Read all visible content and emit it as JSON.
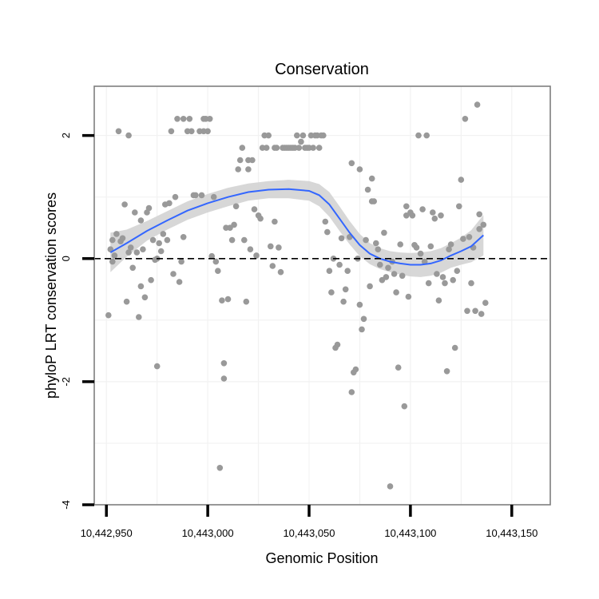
{
  "chart_data": {
    "type": "scatter",
    "title": "Conservation",
    "xlabel": "Genomic Position",
    "ylabel": "phyloP LRT conservation scores",
    "xlim": [
      10442944,
      10443169
    ],
    "ylim": [
      -4,
      2.8
    ],
    "x_ticks": [
      10442950,
      10443000,
      10443050,
      10443100,
      10443150
    ],
    "x_tick_labels": [
      "10,442,950",
      "10,443,000",
      "10,443,050",
      "10,443,100",
      "10,443,150"
    ],
    "y_ticks": [
      -4,
      -2,
      0,
      2
    ],
    "y_tick_labels": [
      "-4",
      "-2",
      "0",
      "2"
    ],
    "reference_line": 0,
    "grid": true,
    "colors": {
      "points": "#999999",
      "smooth": "#3366ff",
      "band": "#d3d3d3",
      "frame": "#7f7f7f"
    },
    "points": [
      [
        10442951,
        -0.92
      ],
      [
        10442952,
        0.15
      ],
      [
        10442953,
        0.3
      ],
      [
        10442953,
        -0.05
      ],
      [
        10442954,
        0.05
      ],
      [
        10442955,
        0.4
      ],
      [
        10442956,
        2.07
      ],
      [
        10442957,
        0.28
      ],
      [
        10442958,
        0.33
      ],
      [
        10442959,
        0.88
      ],
      [
        10442960,
        -0.7
      ],
      [
        10442961,
        0.1
      ],
      [
        10442961,
        2.0
      ],
      [
        10442962,
        0.18
      ],
      [
        10442963,
        -0.15
      ],
      [
        10442964,
        0.75
      ],
      [
        10442965,
        0.1
      ],
      [
        10442966,
        -0.95
      ],
      [
        10442967,
        -0.45
      ],
      [
        10442967,
        0.62
      ],
      [
        10442968,
        0.15
      ],
      [
        10442969,
        -0.63
      ],
      [
        10442970,
        0.75
      ],
      [
        10442971,
        0.82
      ],
      [
        10442972,
        -0.35
      ],
      [
        10442973,
        0.3
      ],
      [
        10442974,
        -0.02
      ],
      [
        10442975,
        -1.75
      ],
      [
        10442975,
        0.0
      ],
      [
        10442976,
        0.25
      ],
      [
        10442977,
        0.12
      ],
      [
        10442978,
        0.4
      ],
      [
        10442979,
        0.88
      ],
      [
        10442980,
        0.3
      ],
      [
        10442981,
        0.9
      ],
      [
        10442982,
        2.07
      ],
      [
        10442983,
        -0.25
      ],
      [
        10442984,
        1.0
      ],
      [
        10442985,
        2.27
      ],
      [
        10442986,
        -0.38
      ],
      [
        10442987,
        -0.05
      ],
      [
        10442988,
        2.27
      ],
      [
        10442988,
        0.35
      ],
      [
        10442990,
        2.07
      ],
      [
        10442991,
        2.27
      ],
      [
        10442992,
        2.07
      ],
      [
        10442993,
        1.03
      ],
      [
        10442994,
        1.03
      ],
      [
        10442996,
        2.07
      ],
      [
        10442997,
        1.03
      ],
      [
        10442998,
        2.27
      ],
      [
        10442998,
        2.07
      ],
      [
        10442999,
        2.27
      ],
      [
        10443000,
        2.07
      ],
      [
        10443001,
        2.27
      ],
      [
        10443002,
        0.04
      ],
      [
        10443003,
        1.0
      ],
      [
        10443004,
        -0.05
      ],
      [
        10443005,
        -0.2
      ],
      [
        10443006,
        -3.4
      ],
      [
        10443007,
        -0.68
      ],
      [
        10443008,
        -1.95
      ],
      [
        10443008,
        -1.7
      ],
      [
        10443009,
        0.5
      ],
      [
        10443010,
        -0.66
      ],
      [
        10443011,
        0.5
      ],
      [
        10443012,
        0.3
      ],
      [
        10443013,
        0.55
      ],
      [
        10443014,
        0.85
      ],
      [
        10443015,
        1.45
      ],
      [
        10443016,
        1.6
      ],
      [
        10443017,
        1.8
      ],
      [
        10443018,
        0.3
      ],
      [
        10443019,
        -0.7
      ],
      [
        10443020,
        1.45
      ],
      [
        10443020,
        1.6
      ],
      [
        10443021,
        0.15
      ],
      [
        10443022,
        1.6
      ],
      [
        10443023,
        0.8
      ],
      [
        10443024,
        0.05
      ],
      [
        10443025,
        0.7
      ],
      [
        10443026,
        0.65
      ],
      [
        10443027,
        1.8
      ],
      [
        10443028,
        2.0
      ],
      [
        10443029,
        1.8
      ],
      [
        10443030,
        2.0
      ],
      [
        10443031,
        0.2
      ],
      [
        10443032,
        -0.12
      ],
      [
        10443033,
        1.8
      ],
      [
        10443033,
        0.6
      ],
      [
        10443034,
        1.8
      ],
      [
        10443035,
        0.18
      ],
      [
        10443036,
        -0.22
      ],
      [
        10443037,
        1.8
      ],
      [
        10443038,
        1.8
      ],
      [
        10443039,
        1.8
      ],
      [
        10443040,
        1.8
      ],
      [
        10443041,
        1.8
      ],
      [
        10443042,
        1.8
      ],
      [
        10443043,
        1.8
      ],
      [
        10443044,
        2.0
      ],
      [
        10443045,
        1.8
      ],
      [
        10443046,
        1.9
      ],
      [
        10443047,
        2.0
      ],
      [
        10443048,
        1.8
      ],
      [
        10443049,
        1.8
      ],
      [
        10443050,
        1.8
      ],
      [
        10443051,
        2.0
      ],
      [
        10443052,
        1.8
      ],
      [
        10443053,
        2.0
      ],
      [
        10443054,
        2.0
      ],
      [
        10443055,
        1.8
      ],
      [
        10443056,
        2.0
      ],
      [
        10443057,
        2.0
      ],
      [
        10443058,
        0.6
      ],
      [
        10443059,
        0.43
      ],
      [
        10443060,
        -0.2
      ],
      [
        10443061,
        -0.55
      ],
      [
        10443062,
        0.0
      ],
      [
        10443063,
        -1.45
      ],
      [
        10443064,
        -1.4
      ],
      [
        10443065,
        -0.1
      ],
      [
        10443066,
        0.33
      ],
      [
        10443067,
        -0.7
      ],
      [
        10443068,
        -0.5
      ],
      [
        10443069,
        -0.2
      ],
      [
        10443070,
        0.35
      ],
      [
        10443071,
        -2.17
      ],
      [
        10443071,
        1.55
      ],
      [
        10443072,
        -1.85
      ],
      [
        10443073,
        -1.8
      ],
      [
        10443074,
        0.0
      ],
      [
        10443075,
        -0.75
      ],
      [
        10443075,
        1.45
      ],
      [
        10443076,
        -1.15
      ],
      [
        10443077,
        -0.98
      ],
      [
        10443078,
        0.3
      ],
      [
        10443079,
        1.12
      ],
      [
        10443080,
        -0.45
      ],
      [
        10443081,
        1.3
      ],
      [
        10443081,
        0.93
      ],
      [
        10443082,
        0.93
      ],
      [
        10443083,
        0.25
      ],
      [
        10443084,
        0.15
      ],
      [
        10443085,
        -0.1
      ],
      [
        10443086,
        -0.35
      ],
      [
        10443087,
        0.42
      ],
      [
        10443088,
        -0.3
      ],
      [
        10443089,
        -0.15
      ],
      [
        10443090,
        -3.7
      ],
      [
        10443091,
        -0.05
      ],
      [
        10443092,
        -0.25
      ],
      [
        10443093,
        -0.55
      ],
      [
        10443094,
        -1.77
      ],
      [
        10443095,
        0.23
      ],
      [
        10443096,
        -0.28
      ],
      [
        10443097,
        -2.4
      ],
      [
        10443098,
        0.7
      ],
      [
        10443098,
        0.85
      ],
      [
        10443099,
        -0.62
      ],
      [
        10443100,
        0.75
      ],
      [
        10443101,
        0.7
      ],
      [
        10443102,
        0.22
      ],
      [
        10443103,
        0.18
      ],
      [
        10443104,
        2.0
      ],
      [
        10443105,
        0.08
      ],
      [
        10443106,
        0.8
      ],
      [
        10443107,
        -0.05
      ],
      [
        10443108,
        2.0
      ],
      [
        10443109,
        -0.4
      ],
      [
        10443110,
        0.2
      ],
      [
        10443111,
        0.75
      ],
      [
        10443112,
        0.65
      ],
      [
        10443113,
        -0.25
      ],
      [
        10443114,
        -0.68
      ],
      [
        10443115,
        0.7
      ],
      [
        10443116,
        -0.3
      ],
      [
        10443117,
        -0.4
      ],
      [
        10443118,
        -1.83
      ],
      [
        10443119,
        0.15
      ],
      [
        10443120,
        0.23
      ],
      [
        10443121,
        -0.35
      ],
      [
        10443122,
        -1.45
      ],
      [
        10443123,
        -0.2
      ],
      [
        10443124,
        0.85
      ],
      [
        10443125,
        1.28
      ],
      [
        10443126,
        0.32
      ],
      [
        10443127,
        2.27
      ],
      [
        10443128,
        -0.85
      ],
      [
        10443129,
        0.35
      ],
      [
        10443130,
        -0.4
      ],
      [
        10443131,
        0.18
      ],
      [
        10443132,
        -0.85
      ],
      [
        10443133,
        2.5
      ],
      [
        10443134,
        0.48
      ],
      [
        10443134,
        0.72
      ],
      [
        10443135,
        -0.9
      ],
      [
        10443136,
        0.55
      ],
      [
        10443137,
        -0.72
      ]
    ],
    "smooth": [
      [
        10442952,
        0.1
      ],
      [
        10442960,
        0.25
      ],
      [
        10442970,
        0.45
      ],
      [
        10442980,
        0.62
      ],
      [
        10442990,
        0.78
      ],
      [
        10443000,
        0.9
      ],
      [
        10443010,
        1.0
      ],
      [
        10443020,
        1.08
      ],
      [
        10443030,
        1.12
      ],
      [
        10443040,
        1.13
      ],
      [
        10443050,
        1.1
      ],
      [
        10443055,
        1.03
      ],
      [
        10443060,
        0.88
      ],
      [
        10443065,
        0.65
      ],
      [
        10443070,
        0.42
      ],
      [
        10443075,
        0.22
      ],
      [
        10443080,
        0.08
      ],
      [
        10443085,
        0.0
      ],
      [
        10443090,
        -0.05
      ],
      [
        10443095,
        -0.08
      ],
      [
        10443100,
        -0.1
      ],
      [
        10443105,
        -0.1
      ],
      [
        10443110,
        -0.08
      ],
      [
        10443115,
        -0.03
      ],
      [
        10443120,
        0.05
      ],
      [
        10443125,
        0.12
      ],
      [
        10443130,
        0.2
      ],
      [
        10443136,
        0.38
      ]
    ],
    "band_half_width": [
      [
        10442952,
        0.32
      ],
      [
        10442960,
        0.22
      ],
      [
        10442970,
        0.16
      ],
      [
        10442980,
        0.15
      ],
      [
        10442990,
        0.15
      ],
      [
        10443000,
        0.15
      ],
      [
        10443010,
        0.15
      ],
      [
        10443020,
        0.14
      ],
      [
        10443030,
        0.14
      ],
      [
        10443040,
        0.15
      ],
      [
        10443050,
        0.16
      ],
      [
        10443055,
        0.18
      ],
      [
        10443060,
        0.2
      ],
      [
        10443065,
        0.2
      ],
      [
        10443070,
        0.19
      ],
      [
        10443075,
        0.18
      ],
      [
        10443080,
        0.17
      ],
      [
        10443085,
        0.17
      ],
      [
        10443090,
        0.17
      ],
      [
        10443095,
        0.18
      ],
      [
        10443100,
        0.19
      ],
      [
        10443105,
        0.2
      ],
      [
        10443110,
        0.2
      ],
      [
        10443115,
        0.2
      ],
      [
        10443120,
        0.2
      ],
      [
        10443125,
        0.22
      ],
      [
        10443130,
        0.26
      ],
      [
        10443136,
        0.33
      ]
    ]
  }
}
